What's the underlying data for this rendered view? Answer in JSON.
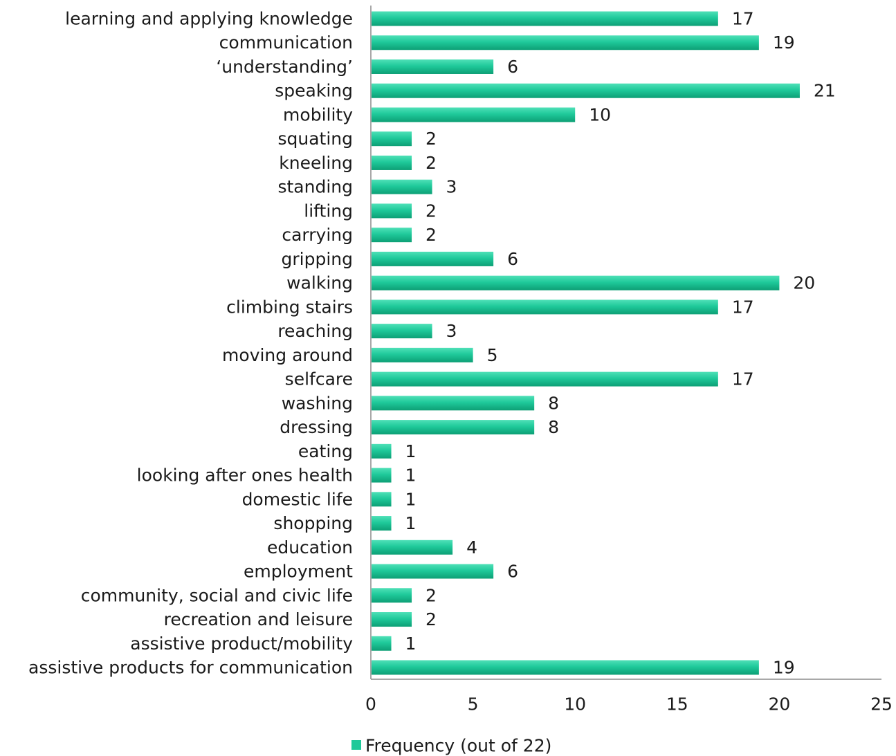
{
  "chart_data": {
    "type": "bar",
    "orientation": "horizontal",
    "categories": [
      "learning and applying knowledge",
      "communication",
      "‘understanding’",
      "speaking",
      "mobility",
      "squating",
      "kneeling",
      "standing",
      "lifting",
      "carrying",
      "gripping",
      "walking",
      "climbing stairs",
      "reaching",
      "moving around",
      "selfcare",
      "washing",
      "dressing",
      "eating",
      "looking after ones health",
      "domestic life",
      "shopping",
      "education",
      "employment",
      "community, social and civic life",
      "recreation and leisure",
      "assistive product/mobility",
      "assistive products for communication"
    ],
    "series": [
      {
        "name": "Frequency (out of 22)",
        "values": [
          17,
          19,
          6,
          21,
          10,
          2,
          2,
          3,
          2,
          2,
          6,
          20,
          17,
          3,
          5,
          17,
          8,
          8,
          1,
          1,
          1,
          1,
          4,
          6,
          2,
          2,
          1,
          19
        ],
        "color": "#1fc99a"
      }
    ],
    "data_labels": true,
    "xlim": [
      0,
      25
    ],
    "xticks": [
      0,
      5,
      10,
      15,
      20,
      25
    ],
    "grid": false,
    "legend_position": "bottom"
  },
  "legend": {
    "label": "Frequency (out of 22)"
  }
}
